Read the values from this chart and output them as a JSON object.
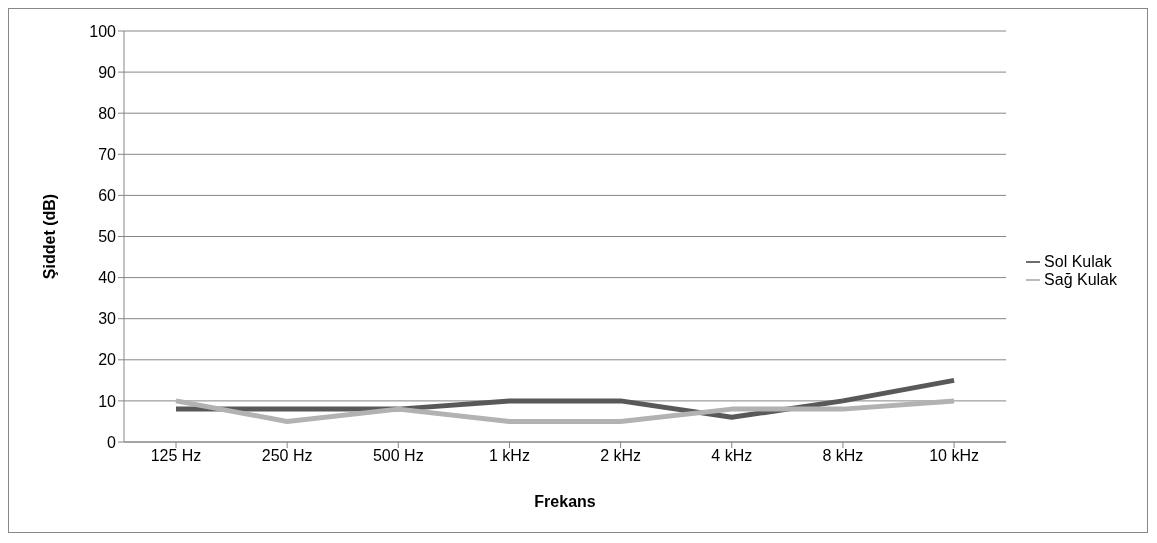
{
  "chart_data": {
    "type": "line",
    "xlabel": "Frekans",
    "ylabel": "Şiddet (dB)",
    "categories": [
      "125 Hz",
      "250 Hz",
      "500 Hz",
      "1 kHz",
      "2 kHz",
      "4 kHz",
      "8 kHz",
      "10 kHz"
    ],
    "series": [
      {
        "name": "Sol Kulak",
        "color": "#595959",
        "values": [
          8,
          8,
          8,
          10,
          10,
          6,
          10,
          15
        ]
      },
      {
        "name": "Sağ Kulak",
        "color": "#b2b2b2",
        "values": [
          10,
          5,
          8,
          5,
          5,
          8,
          8,
          10
        ]
      }
    ],
    "ylim": [
      0,
      100
    ],
    "yticks": [
      0,
      10,
      20,
      30,
      40,
      50,
      60,
      70,
      80,
      90,
      100
    ],
    "grid": "y",
    "legend": "right",
    "marker": "none"
  }
}
